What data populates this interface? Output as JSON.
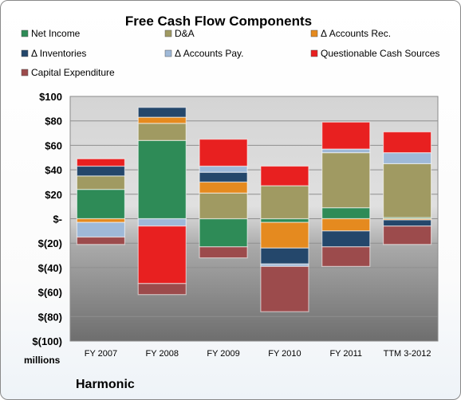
{
  "chart_data": {
    "type": "bar",
    "stacked": true,
    "title": "Free Cash Flow Components",
    "unit_label": "millions",
    "company": "Harmonic",
    "categories": [
      "FY 2007",
      "FY 2008",
      "FY 2009",
      "FY 2010",
      "FY 2011",
      "TTM 3-2012"
    ],
    "ylim": [
      -100,
      100
    ],
    "yticks": [
      {
        "value": 100,
        "label": "$100"
      },
      {
        "value": 80,
        "label": "$80"
      },
      {
        "value": 60,
        "label": "$60"
      },
      {
        "value": 40,
        "label": "$40"
      },
      {
        "value": 20,
        "label": "$20"
      },
      {
        "value": 0,
        "label": "$-"
      },
      {
        "value": -20,
        "label": "$(20)"
      },
      {
        "value": -40,
        "label": "$(40)"
      },
      {
        "value": -60,
        "label": "$(60)"
      },
      {
        "value": -80,
        "label": "$(80)"
      },
      {
        "value": -100,
        "label": "$(100)"
      }
    ],
    "legend_position": "top",
    "series": [
      {
        "name": "Net Income",
        "color": "#2e8b57",
        "values": [
          24,
          64,
          -23,
          -3,
          9,
          1
        ]
      },
      {
        "name": "D&A",
        "color": "#a09a62",
        "values": [
          11,
          14,
          21,
          27,
          45,
          44
        ]
      },
      {
        "name": "Δ Accounts Rec.",
        "color": "#e58a1f",
        "values": [
          -3,
          5,
          9,
          -21,
          -10,
          -1
        ]
      },
      {
        "name": "Δ Inventories",
        "color": "#24476b",
        "values": [
          8,
          8,
          8,
          -13,
          -13,
          -5
        ]
      },
      {
        "name": "Δ Accounts Pay.",
        "color": "#9fb9d8",
        "values": [
          -12,
          -6,
          5,
          -2,
          3,
          9
        ]
      },
      {
        "name": "Questionable Cash Sources",
        "color": "#e82020",
        "values": [
          6,
          -47,
          22,
          16,
          22,
          17
        ]
      },
      {
        "name": "Capital Expenditure",
        "color": "#9c4b4c",
        "values": [
          -6,
          -9,
          -9,
          -37,
          -16,
          -15
        ]
      }
    ]
  }
}
